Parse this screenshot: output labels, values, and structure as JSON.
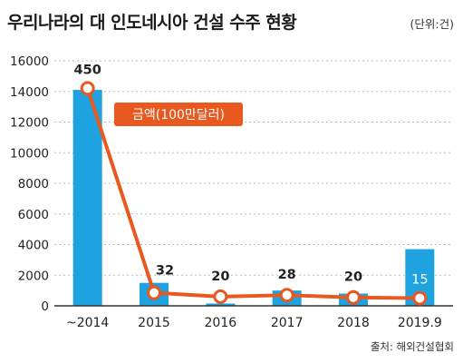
{
  "header": {
    "title": "우리나라의 대 인도네시아 건설 수주 현황",
    "unit": "(단위:건)"
  },
  "footer": {
    "source": "출처: 해외건설협회"
  },
  "colors": {
    "bar": "#1fa3e0",
    "line": "#e8581f",
    "axis": "#333333",
    "grid": "#bbbbbb"
  },
  "chart_data": {
    "type": "bar",
    "categories": [
      "~2014",
      "2015",
      "2016",
      "2017",
      "2018",
      "2019.9"
    ],
    "ylim": [
      0,
      16000
    ],
    "yticks": [
      0,
      2000,
      4000,
      6000,
      8000,
      10000,
      12000,
      14000,
      16000
    ],
    "grid": true,
    "series": [
      {
        "type": "bar",
        "values": [
          450,
          32,
          20,
          28,
          20,
          15
        ],
        "bar_values": [
          14100,
          1500,
          150,
          1000,
          800,
          3700
        ],
        "data_labels": [
          "450",
          "32",
          "20",
          "28",
          "20",
          "15"
        ]
      },
      {
        "name": "금액(100만달러)",
        "type": "line",
        "values": [
          14200,
          850,
          600,
          700,
          550,
          500
        ]
      }
    ]
  }
}
